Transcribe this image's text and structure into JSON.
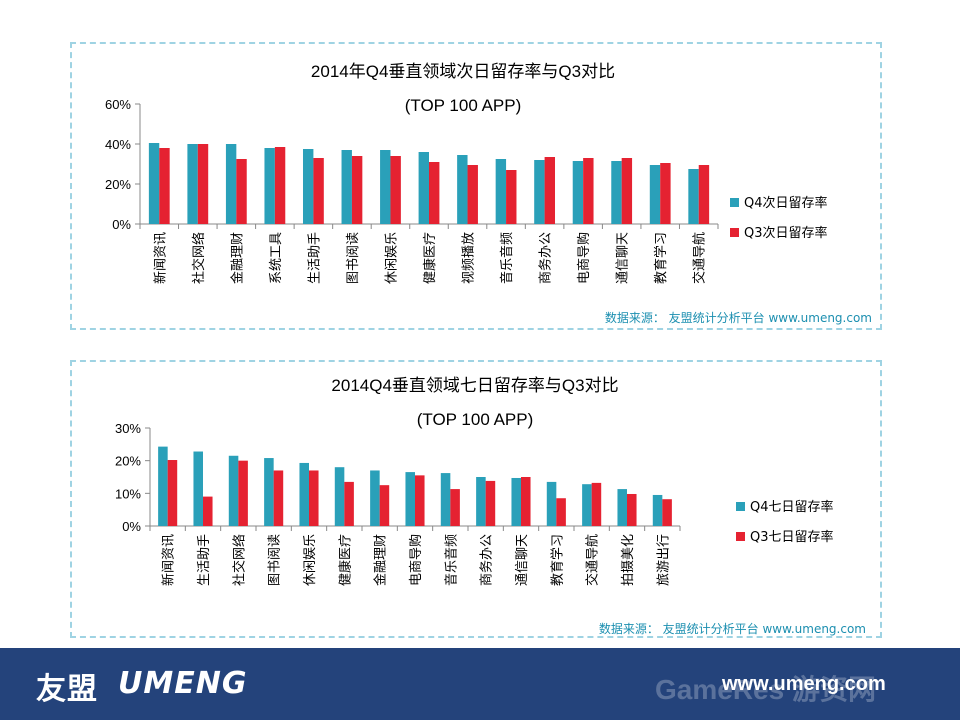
{
  "chart_data": [
    {
      "type": "bar",
      "title": "2014年Q4垂直领域次日留存率与Q3对比",
      "subtitle": "(TOP 100 APP)",
      "categories": [
        "新闻资讯",
        "社交网络",
        "金融理财",
        "系统工具",
        "生活助手",
        "图书阅读",
        "休闲娱乐",
        "健康医疗",
        "视频播放",
        "音乐音频",
        "商务办公",
        "电商导购",
        "通信聊天",
        "教育学习",
        "交通导航"
      ],
      "series": [
        {
          "name": "Q4次日留存率",
          "color": "#2aa0b9",
          "values": [
            40.5,
            40,
            40,
            38,
            37.5,
            37,
            37,
            36,
            34.5,
            32.5,
            32,
            31.5,
            31.5,
            29.5,
            27.5
          ]
        },
        {
          "name": "Q3次日留存率",
          "color": "#e52231",
          "values": [
            38,
            40,
            32.5,
            38.5,
            33,
            34,
            34,
            31,
            29.5,
            27,
            33.5,
            33,
            33,
            30.5,
            29.5
          ]
        }
      ],
      "ylim": [
        0,
        60
      ],
      "yticks": [
        "0%",
        "20%",
        "40%",
        "60%"
      ],
      "grid": false,
      "legend": "right",
      "source": "数据来源： 友盟统计分析平台 www.umeng.com"
    },
    {
      "type": "bar",
      "title": "2014Q4垂直领域七日留存率与Q3对比",
      "subtitle": "(TOP 100 APP)",
      "categories": [
        "新闻资讯",
        "生活助手",
        "社交网络",
        "图书阅读",
        "休闲娱乐",
        "健康医疗",
        "金融理财",
        "电商导购",
        "音乐音频",
        "商务办公",
        "通信聊天",
        "教育学习",
        "交通导航",
        "拍摄美化",
        "旅游出行"
      ],
      "series": [
        {
          "name": "Q4七日留存率",
          "color": "#2aa0b9",
          "values": [
            24.3,
            22.8,
            21.5,
            20.8,
            19.3,
            18,
            17,
            16.5,
            16.2,
            15,
            14.7,
            13.5,
            12.8,
            11.3,
            9.5
          ]
        },
        {
          "name": "Q3七日留存率",
          "color": "#e52231",
          "values": [
            20.2,
            9,
            20,
            17,
            17,
            13.5,
            12.5,
            15.5,
            11.3,
            13.8,
            15,
            8.5,
            13.2,
            9.8,
            8.2
          ]
        }
      ],
      "ylim": [
        0,
        30
      ],
      "yticks": [
        "0%",
        "10%",
        "20%",
        "30%"
      ],
      "grid": false,
      "legend": "right",
      "source": "数据来源： 友盟统计分析平台 www.umeng.com"
    }
  ],
  "footer": {
    "logo_cn": "友盟",
    "logo_en": "UMENG",
    "url": "www.umeng.com",
    "watermark": "GameRes 游资网"
  }
}
